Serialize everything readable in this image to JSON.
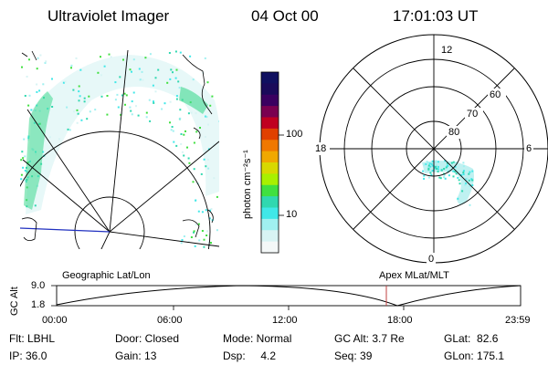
{
  "header": {
    "title": "Ultraviolet Imager",
    "date": "04 Oct 00",
    "time": "17:01:03 UT"
  },
  "colorbar": {
    "unit_label": "photon cm⁻²s⁻¹",
    "ticks": [
      "100",
      "10"
    ],
    "colors": [
      "#101060",
      "#1a0a5a",
      "#3a0060",
      "#7a0050",
      "#c00020",
      "#e04000",
      "#f07800",
      "#f0a800",
      "#d8d800",
      "#a8f000",
      "#40e040",
      "#30d8b0",
      "#40e8e8",
      "#a0f0f0",
      "#d8f4f4",
      "#f4f8f8"
    ]
  },
  "left_map": {
    "label": "Geographic Lat/Lon"
  },
  "polar_plot": {
    "label": "Apex MLat/MLT",
    "mlt_labels": [
      "12",
      "18",
      "6",
      "0"
    ],
    "lat_labels": [
      "60",
      "70",
      "80"
    ]
  },
  "altitude_plot": {
    "ylabel": "GC Alt",
    "yticks": [
      "9.0",
      "1.8"
    ],
    "xticks": [
      "00:00",
      "06:00",
      "12:00",
      "18:00",
      "23:59"
    ],
    "marker_color": "#c04040"
  },
  "info": {
    "flt": "Flt: LBHL",
    "ip": "IP: 36.0",
    "door": "Door: Closed",
    "gain": "Gain: 13",
    "mode": "Mode: Normal",
    "dsp": "Dsp:     4.2",
    "gc_alt": "GC Alt: 3.7 Re",
    "seq": "Seq: 39",
    "glat": "GLat:  82.6",
    "glon": "GLon: 175.1"
  }
}
